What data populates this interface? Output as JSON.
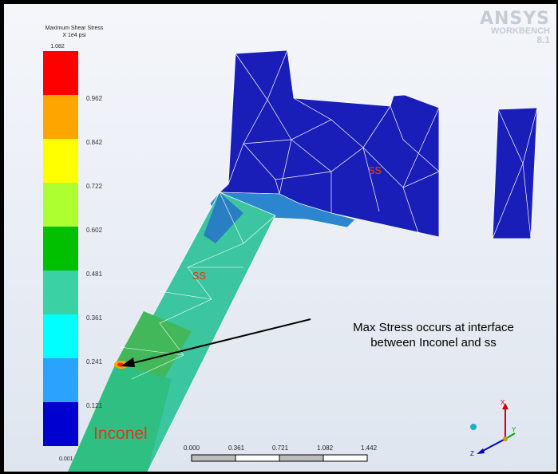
{
  "legend": {
    "title_line1": "Maximum Shear Stress",
    "title_line2": "X 1e4 psi",
    "max_label": "1.082",
    "labels": [
      "0.962",
      "0.842",
      "0.722",
      "0.602",
      "0.481",
      "0.361",
      "0.241",
      "0.121"
    ],
    "min_label": "0.001",
    "colors": [
      "#ff0000",
      "#ffa500",
      "#ffff00",
      "#adff2f",
      "#00c000",
      "#3ad1a4",
      "#00ffff",
      "#2aa3ff",
      "#0000d0"
    ]
  },
  "logo": {
    "line1": "ANSYS",
    "line2": "WORKBENCH",
    "line3": "8.1"
  },
  "labels": {
    "upper_part": "ss",
    "arm": "ss",
    "material": "Inconel"
  },
  "annotation": {
    "line1": "Max Stress occurs at interface",
    "line2": "between Inconel and ss"
  },
  "scale_bar": {
    "ticks": [
      "0.000",
      "0.361",
      "0.721",
      "1.082",
      "1.442"
    ]
  },
  "triad": {
    "x": "X",
    "y": "Y",
    "z": "Z"
  }
}
